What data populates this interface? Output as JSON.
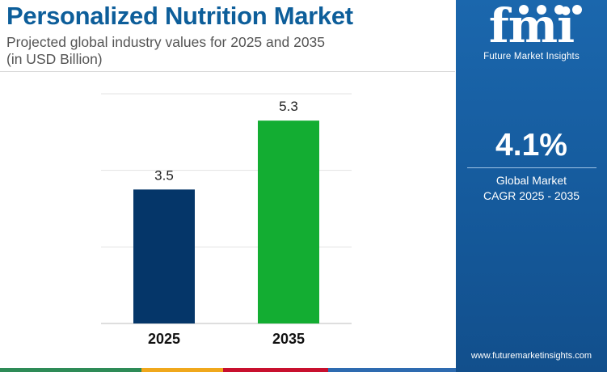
{
  "header": {
    "title": "Personalized Nutrition Market",
    "subtitle_line1": "Projected global industry values for 2025 and 2035",
    "subtitle_line2": "(in USD Billion)"
  },
  "chart_data": {
    "type": "bar",
    "title": "Personalized Nutrition Market",
    "subtitle": "Projected global industry values for 2025 and 2035 (in USD Billion)",
    "categories": [
      "2025",
      "2035"
    ],
    "values": [
      3.5,
      5.3
    ],
    "value_labels": [
      "3.5",
      "5.3"
    ],
    "bar_colors": [
      "#053669",
      "#13ad32"
    ],
    "ylim": [
      0,
      6
    ],
    "grid": true,
    "xlabel": "",
    "ylabel": ""
  },
  "sidebar": {
    "logo_text": "fmi",
    "logo_subtext": "Future Market Insights",
    "cagr_value": "4.1%",
    "cagr_label_line1": "Global Market",
    "cagr_label_line2": "CAGR 2025 - 2035",
    "website": "www.futuremarketinsights.com",
    "background_color": "#1b67ad"
  },
  "footer": {
    "stripe_colors": [
      "#2e8b57",
      "#f0a81c",
      "#c8102e",
      "#2e6bb0"
    ]
  }
}
